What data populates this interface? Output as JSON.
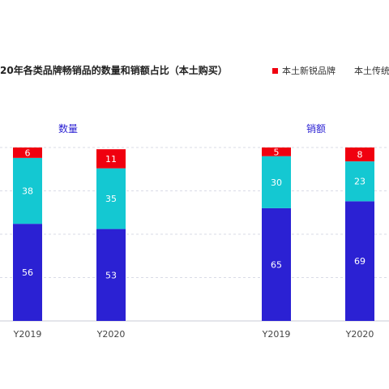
{
  "title": "20年各类品牌畅销品的数量和销额占比（本土购买）",
  "legend": [
    {
      "label": "本土新锐品牌",
      "color": "#F0000F"
    },
    {
      "label": "本土传统",
      "color": "#14C8D2"
    }
  ],
  "colors": {
    "base": "#2B21D3",
    "mid": "#14C8D2",
    "top": "#F0000F",
    "grid": "#d9dbe6"
  },
  "chart_data": [
    {
      "type": "bar",
      "subtitle": "数量",
      "categories": [
        "Y2019",
        "Y2020"
      ],
      "series": [
        {
          "values": [
            56,
            53
          ]
        },
        {
          "values": [
            38,
            35
          ]
        },
        {
          "values": [
            6,
            11
          ]
        }
      ],
      "ylim": [
        0,
        100
      ]
    },
    {
      "type": "bar",
      "subtitle": "销额",
      "categories": [
        "Y2019",
        "Y2020"
      ],
      "series": [
        {
          "values": [
            65,
            69
          ]
        },
        {
          "values": [
            30,
            23
          ]
        },
        {
          "values": [
            5,
            8
          ]
        }
      ],
      "ylim": [
        0,
        100
      ]
    }
  ]
}
